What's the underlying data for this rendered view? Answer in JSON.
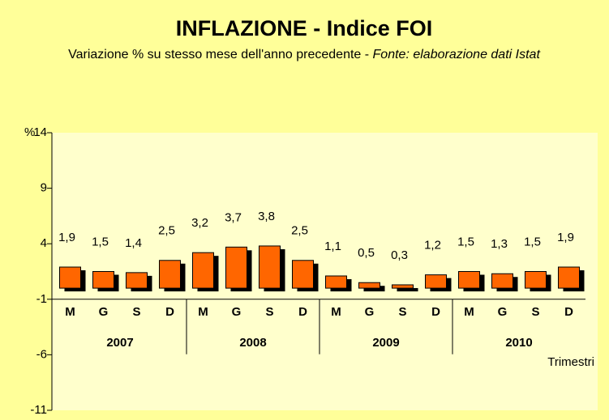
{
  "chart_data": {
    "type": "bar",
    "title": "INFLAZIONE - Indice FOI",
    "subtitle": "Variazione % su stesso mese dell'anno precedente -",
    "source": "Fonte: elaborazione dati Istat",
    "y_label": "%",
    "x_label": "Trimestri",
    "categories": [
      "M",
      "G",
      "S",
      "D",
      "M",
      "G",
      "S",
      "D",
      "M",
      "G",
      "S",
      "D",
      "M",
      "G",
      "S",
      "D"
    ],
    "groups": [
      "2007",
      "2008",
      "2009",
      "2010"
    ],
    "values": [
      1.9,
      1.5,
      1.4,
      2.5,
      3.2,
      3.7,
      3.8,
      2.5,
      1.1,
      0.5,
      0.3,
      1.2,
      1.5,
      1.3,
      1.5,
      1.9
    ],
    "value_labels": [
      "1,9",
      "1,5",
      "1,4",
      "2,5",
      "3,2",
      "3,7",
      "3,8",
      "2,5",
      "1,1",
      "0,5",
      "0,3",
      "1,2",
      "1,5",
      "1,3",
      "1,5",
      "1,9"
    ],
    "color": "#ff6600",
    "ylim": [
      -11,
      14
    ],
    "yticks": [
      -11,
      -6,
      -1,
      4,
      9,
      14
    ],
    "grid": false
  }
}
